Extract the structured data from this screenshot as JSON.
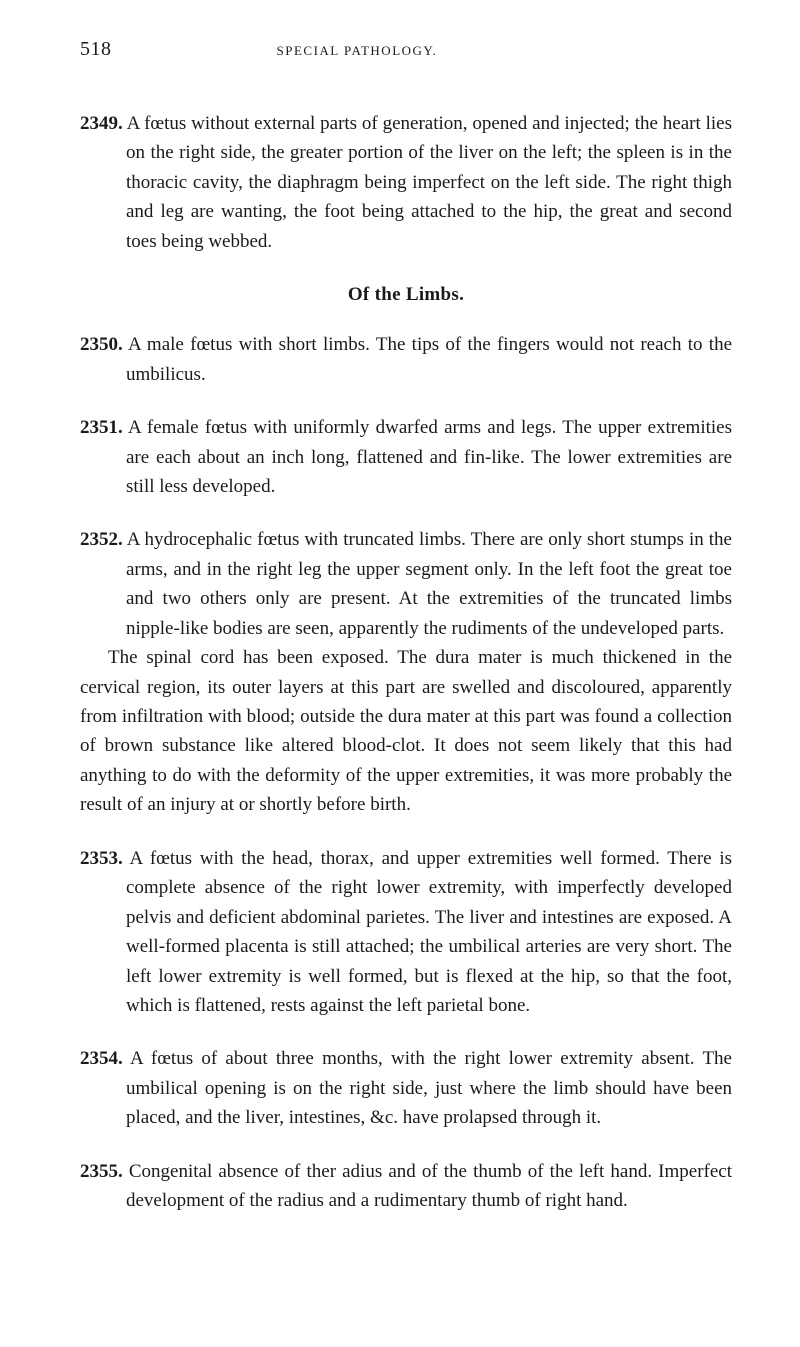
{
  "header": {
    "page_number": "518",
    "running_title": "SPECIAL PATHOLOGY."
  },
  "entries": [
    {
      "num": "2349.",
      "paragraphs": [
        "A fœtus without external parts of generation, opened and injected; the heart lies on the right side, the greater portion of the liver on the left; the spleen is in the thoracic cavity, the diaphragm being imperfect on the left side. The right thigh and leg are wanting, the foot being attached to the hip, the great and second toes being webbed."
      ]
    }
  ],
  "section_heading": "Of the Limbs.",
  "entries2": [
    {
      "num": "2350.",
      "paragraphs": [
        "A male fœtus with short limbs. The tips of the fingers would not reach to the umbilicus."
      ]
    },
    {
      "num": "2351.",
      "paragraphs": [
        "A female fœtus with uniformly dwarfed arms and legs. The upper extremities are each about an inch long, flattened and fin-like. The lower extremities are still less developed."
      ]
    },
    {
      "num": "2352.",
      "paragraphs": [
        "A hydrocephalic fœtus with truncated limbs. There are only short stumps in the arms, and in the right leg the upper segment only. In the left foot the great toe and two others only are present. At the extremities of the truncated limbs nipple-like bodies are seen, apparently the rudiments of the undeveloped parts.",
        "The spinal cord has been exposed. The dura mater is much thickened in the cervical region, its outer layers at this part are swelled and discoloured, apparently from infiltration with blood; outside the dura mater at this part was found a collection of brown substance like altered blood-clot. It does not seem likely that this had anything to do with the deformity of the upper extremities, it was more probably the result of an injury at or shortly before birth."
      ]
    },
    {
      "num": "2353.",
      "paragraphs": [
        "A fœtus with the head, thorax, and upper extremities well formed. There is complete absence of the right lower extremity, with imperfectly developed pelvis and deficient abdominal parietes. The liver and intestines are exposed. A well-formed placenta is still attached; the umbilical arteries are very short. The left lower extremity is well formed, but is flexed at the hip, so that the foot, which is flattened, rests against the left parietal bone."
      ]
    },
    {
      "num": "2354.",
      "paragraphs": [
        "A fœtus of about three months, with the right lower extremity absent. The umbilical opening is on the right side, just where the limb should have been placed, and the liver, intestines, &c. have prolapsed through it."
      ]
    },
    {
      "num": "2355.",
      "paragraphs": [
        "Congenital absence of ther adius and of the thumb of the left hand. Imperfect development of the radius and a rudimentary thumb of right hand."
      ]
    }
  ]
}
